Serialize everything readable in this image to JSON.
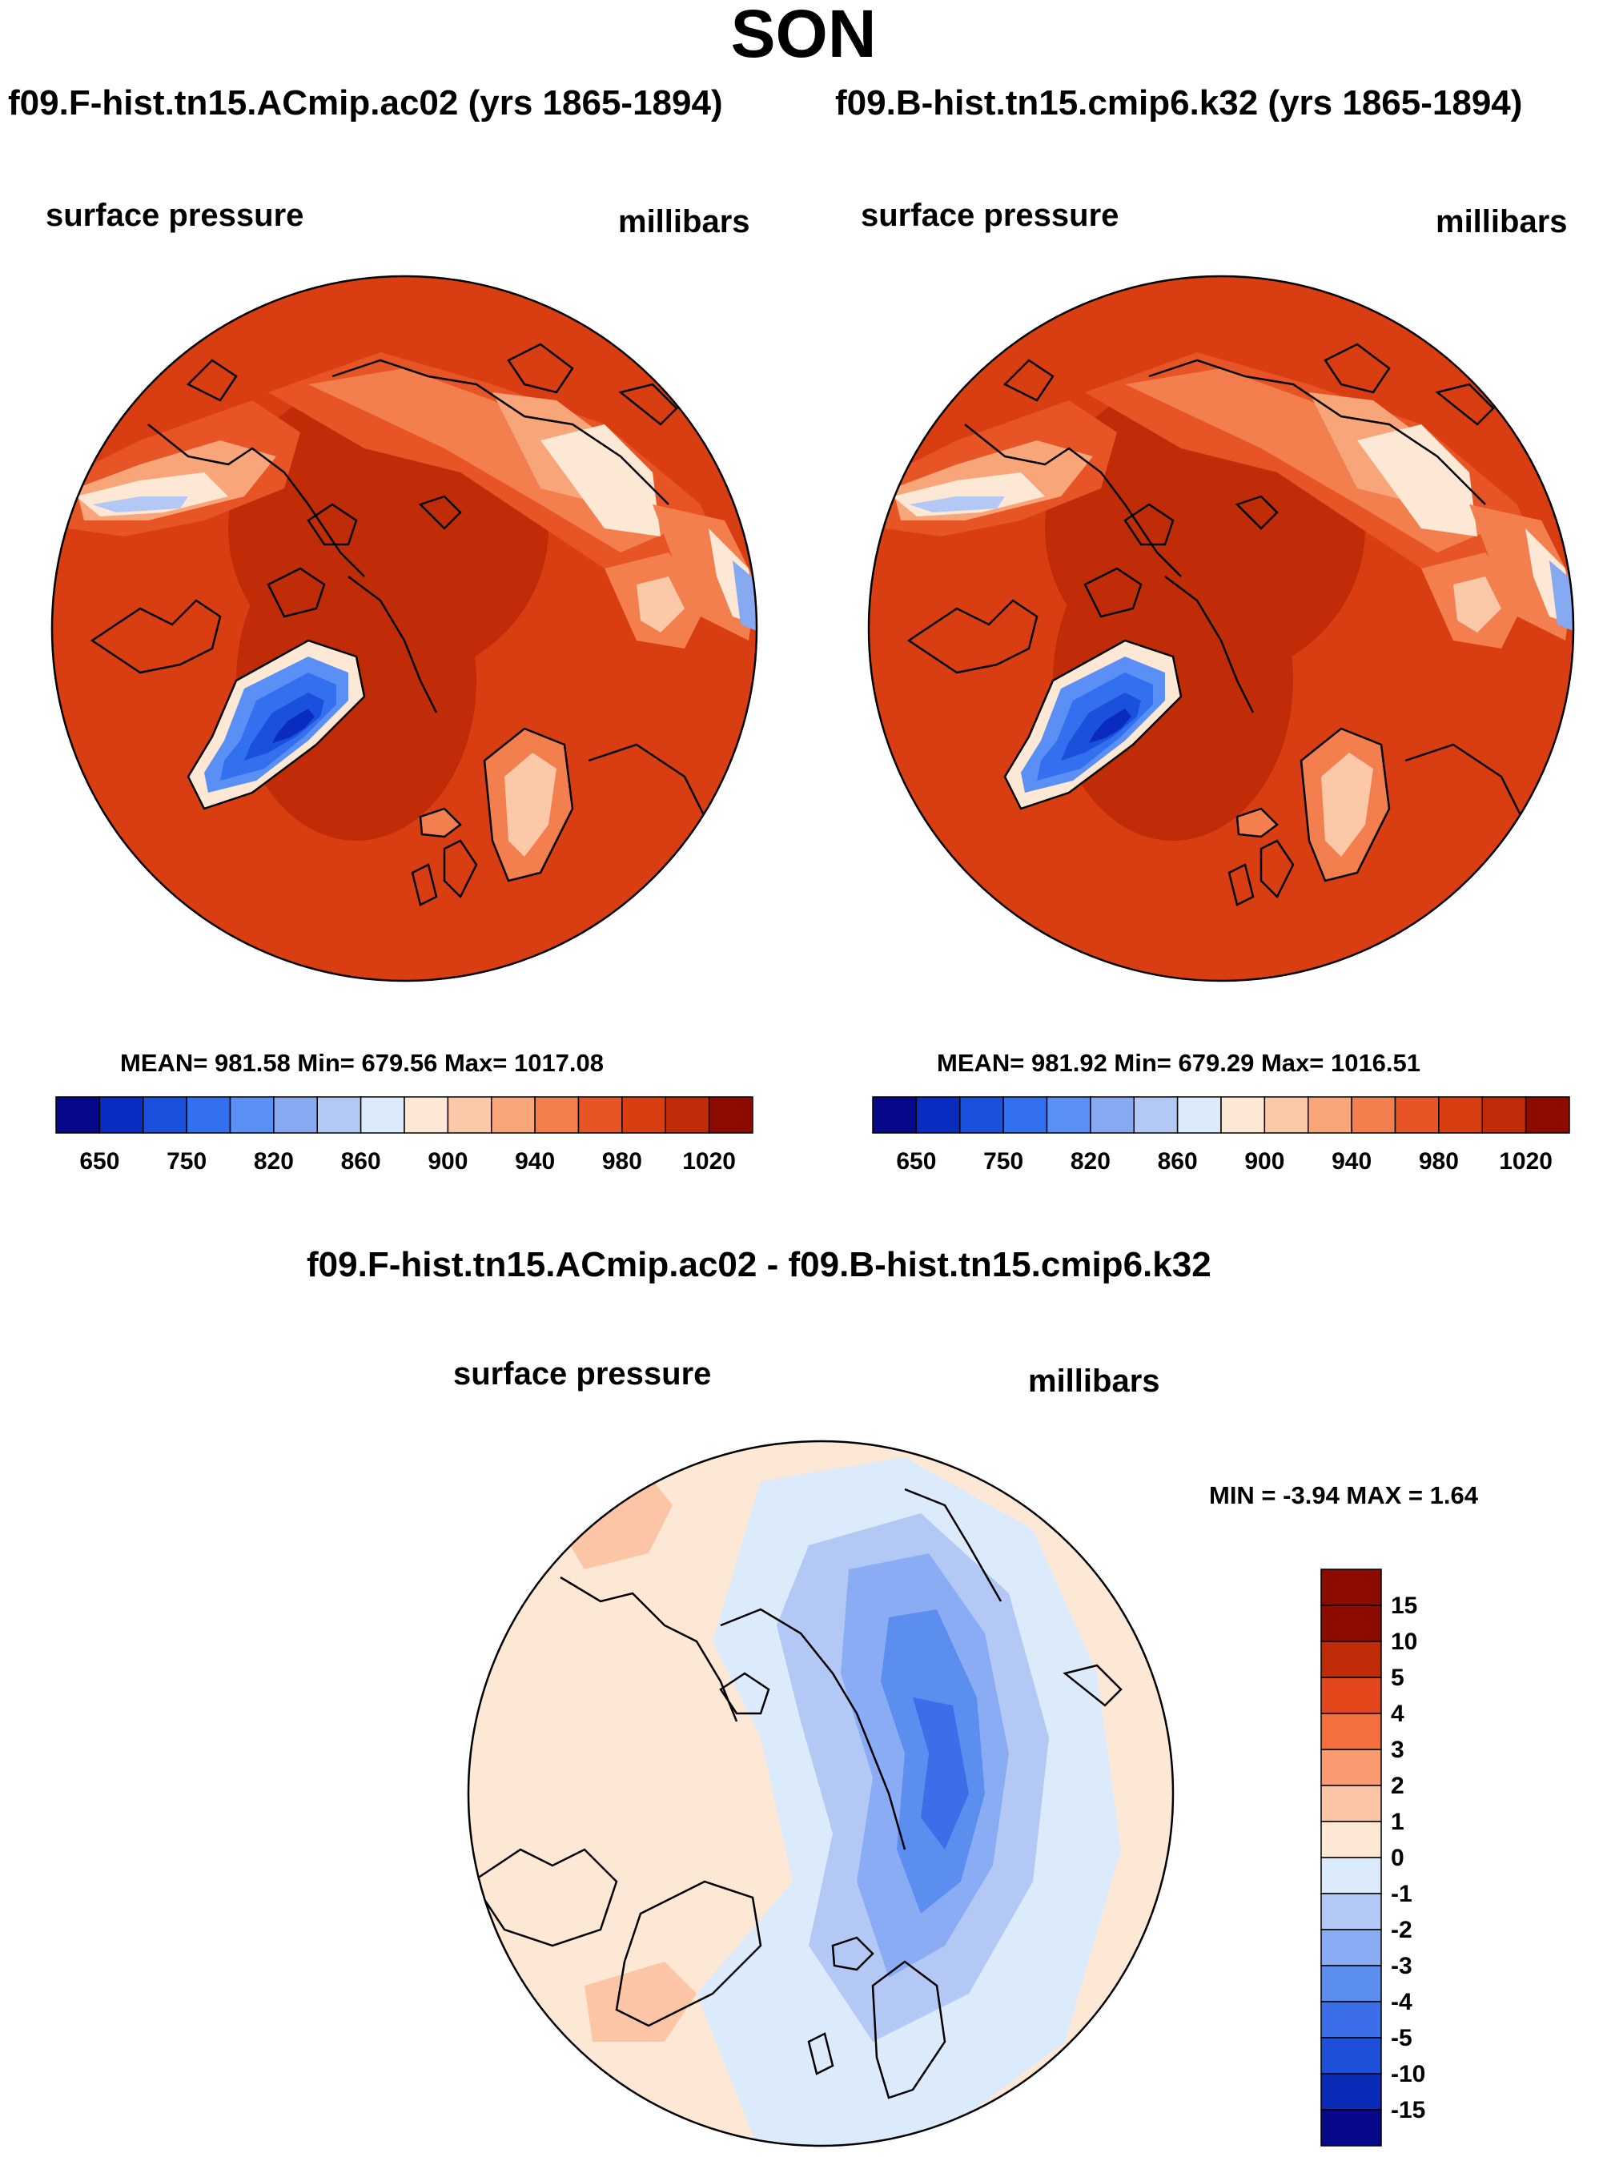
{
  "figure_title": "SON",
  "chart_data": [
    {
      "type": "heatmap",
      "projection": "north polar stereographic",
      "title": "f09.F-hist.tn15.ACmip.ac02 (yrs 1865-1894)",
      "left_label": "surface pressure",
      "right_label": "millibars",
      "stats": "MEAN= 981.58  Min= 679.56  Max= 1017.08",
      "mean": 981.58,
      "min": 679.56,
      "max": 1017.08,
      "colorbar": {
        "orientation": "horizontal",
        "levels": [
          650,
          700,
          750,
          800,
          820,
          840,
          860,
          880,
          900,
          920,
          940,
          960,
          980,
          1000,
          1020
        ],
        "tick_labels": [
          "650",
          "750",
          "820",
          "860",
          "900",
          "940",
          "980",
          "1020"
        ]
      }
    },
    {
      "type": "heatmap",
      "projection": "north polar stereographic",
      "title": "f09.B-hist.tn15.cmip6.k32 (yrs 1865-1894)",
      "left_label": "surface pressure",
      "right_label": "millibars",
      "stats": "MEAN= 981.92  Min= 679.29  Max= 1016.51",
      "mean": 981.92,
      "min": 679.29,
      "max": 1016.51,
      "colorbar": {
        "orientation": "horizontal",
        "levels": [
          650,
          700,
          750,
          800,
          820,
          840,
          860,
          880,
          900,
          920,
          940,
          960,
          980,
          1000,
          1020
        ],
        "tick_labels": [
          "650",
          "750",
          "820",
          "860",
          "900",
          "940",
          "980",
          "1020"
        ]
      }
    },
    {
      "type": "heatmap",
      "projection": "north polar stereographic",
      "title": "f09.F-hist.tn15.ACmip.ac02 - f09.B-hist.tn15.cmip6.k32",
      "left_label": "surface pressure",
      "right_label": "millibars",
      "stats": "MIN =  -3.94 MAX =   1.64",
      "min": -3.94,
      "max": 1.64,
      "colorbar": {
        "orientation": "vertical",
        "levels": [
          15,
          10,
          5,
          4,
          3,
          2,
          1,
          0,
          -1,
          -2,
          -3,
          -4,
          -5,
          -10,
          -15
        ],
        "tick_labels": [
          "15",
          "10",
          "5",
          "4",
          "3",
          "2",
          "1",
          "0",
          "-1",
          "-2",
          "-3",
          "-4",
          "-5",
          "-10",
          "-15"
        ]
      }
    }
  ],
  "palettes": {
    "abs": [
      "#08088a",
      "#0a2bbf",
      "#1a50dc",
      "#3270f0",
      "#5a8ff5",
      "#86a9f2",
      "#b4c8f6",
      "#dcebfb",
      "#fde8d6",
      "#fbc8a8",
      "#f8a57a",
      "#f37e4e",
      "#e75526",
      "#d93d12",
      "#c02c08",
      "#8c0a00"
    ],
    "diff": [
      "#8c0a00",
      "#c02c08",
      "#e2461a",
      "#f46e3e",
      "#f99a70",
      "#fcc6a6",
      "#fde8d6",
      "#dcebfb",
      "#b4c8f6",
      "#8aacf4",
      "#5c8ef0",
      "#3b6ee8",
      "#1e4fd8",
      "#0a2bb8",
      "#08088a"
    ]
  }
}
